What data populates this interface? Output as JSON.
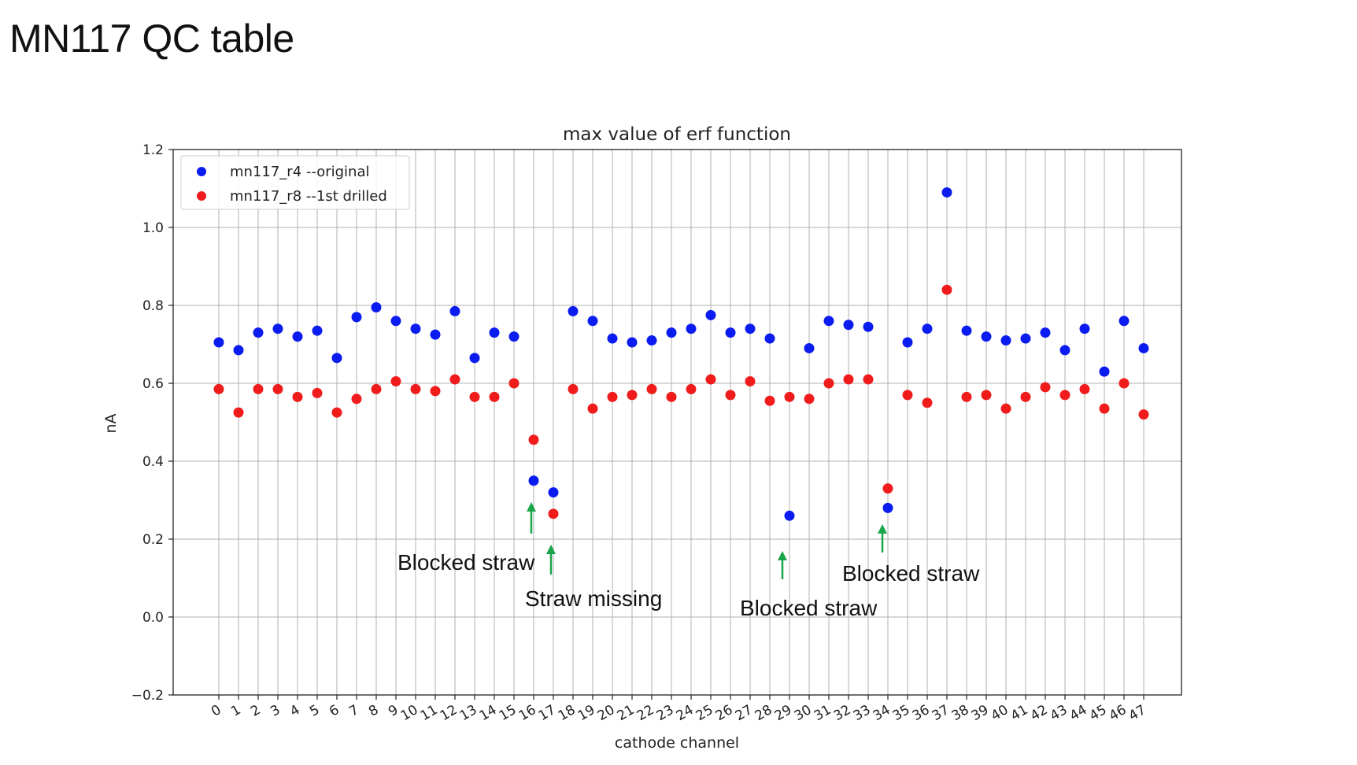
{
  "slide": {
    "title": "MN117 QC table"
  },
  "chart_data": {
    "type": "scatter",
    "title": "max value of erf function",
    "xlabel": "cathode channel",
    "ylabel": "nA",
    "ylim": [
      -0.2,
      1.2
    ],
    "yticks": [
      -0.2,
      0.0,
      0.2,
      0.4,
      0.6,
      0.8,
      1.0,
      1.2
    ],
    "ytick_labels": [
      "−0.2",
      "0.0",
      "0.2",
      "0.4",
      "0.6",
      "0.8",
      "1.0",
      "1.2"
    ],
    "x": [
      0,
      1,
      2,
      3,
      4,
      5,
      6,
      7,
      8,
      9,
      10,
      11,
      12,
      13,
      14,
      15,
      16,
      17,
      18,
      19,
      20,
      21,
      22,
      23,
      24,
      25,
      26,
      27,
      28,
      29,
      30,
      31,
      32,
      33,
      34,
      35,
      36,
      37,
      38,
      39,
      40,
      41,
      42,
      43,
      44,
      45,
      46,
      47
    ],
    "grid": true,
    "legend_position": "top-left",
    "series": [
      {
        "name": "mn117_r4 --original",
        "color": "#0b1cf0",
        "x": [
          0,
          1,
          2,
          3,
          4,
          5,
          6,
          7,
          8,
          9,
          10,
          11,
          12,
          13,
          14,
          15,
          16,
          17,
          18,
          19,
          20,
          21,
          22,
          23,
          24,
          25,
          26,
          27,
          28,
          29,
          30,
          31,
          32,
          33,
          34,
          35,
          36,
          37,
          38,
          39,
          40,
          41,
          42,
          43,
          44,
          45,
          46,
          47
        ],
        "values": [
          0.705,
          0.685,
          0.73,
          0.74,
          0.72,
          0.735,
          0.665,
          0.77,
          0.795,
          0.76,
          0.74,
          0.725,
          0.785,
          0.665,
          0.73,
          0.72,
          0.35,
          0.32,
          0.785,
          0.76,
          0.715,
          0.705,
          0.71,
          0.73,
          0.74,
          0.775,
          0.73,
          0.74,
          0.715,
          0.26,
          0.69,
          0.76,
          0.75,
          0.745,
          0.28,
          0.705,
          0.74,
          1.09,
          0.735,
          0.72,
          0.71,
          0.715,
          0.73,
          0.685,
          0.74,
          0.63,
          0.76,
          0.69
        ]
      },
      {
        "name": "mn117_r8 --1st drilled",
        "color": "#f01c1c",
        "x": [
          0,
          1,
          2,
          3,
          4,
          5,
          6,
          7,
          8,
          9,
          10,
          11,
          12,
          13,
          14,
          15,
          16,
          17,
          18,
          19,
          20,
          21,
          22,
          23,
          24,
          25,
          26,
          27,
          28,
          29,
          30,
          31,
          32,
          33,
          34,
          35,
          36,
          37,
          38,
          39,
          40,
          41,
          42,
          43,
          44,
          45,
          46,
          47
        ],
        "values": [
          0.585,
          0.525,
          0.585,
          0.585,
          0.565,
          0.575,
          0.525,
          0.56,
          0.585,
          0.605,
          0.585,
          0.58,
          0.61,
          0.565,
          0.565,
          0.6,
          0.455,
          0.265,
          0.585,
          0.535,
          0.565,
          0.57,
          0.585,
          0.565,
          0.585,
          0.61,
          0.57,
          0.605,
          0.555,
          0.565,
          0.56,
          0.6,
          0.61,
          0.61,
          0.33,
          0.57,
          0.55,
          0.84,
          0.565,
          0.57,
          0.535,
          0.565,
          0.59,
          0.57,
          0.585,
          0.535,
          0.6,
          0.52
        ]
      }
    ],
    "annotations": [
      {
        "id": "ann16",
        "text": "Blocked straw",
        "arrow_color": "#1aa54a"
      },
      {
        "id": "ann17",
        "text": "Straw missing",
        "arrow_color": "#1aa54a"
      },
      {
        "id": "ann29",
        "text": "Blocked straw",
        "arrow_color": "#1aa54a"
      },
      {
        "id": "ann34",
        "text": "Blocked straw",
        "arrow_color": "#1aa54a"
      }
    ]
  }
}
